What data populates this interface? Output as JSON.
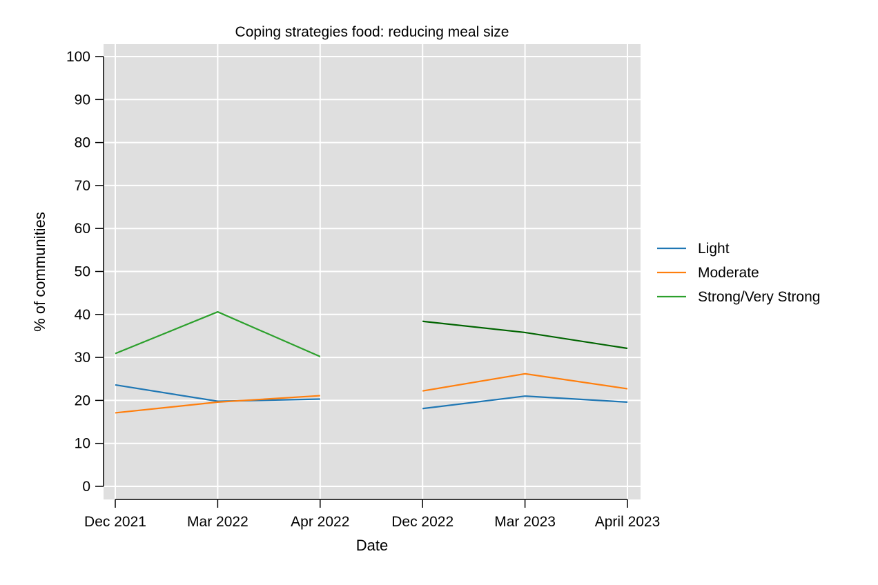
{
  "chart_data": {
    "type": "line",
    "title": "Coping strategies food: reducing meal size",
    "xlabel": "Date",
    "ylabel": "% of communities",
    "categories": [
      "Dec 2021",
      "Mar 2022",
      "Apr 2022",
      "Dec 2022",
      "Mar 2023",
      "April 2023"
    ],
    "ylim": [
      0,
      100
    ],
    "yticks": [
      0,
      10,
      20,
      30,
      40,
      50,
      60,
      70,
      80,
      90,
      100
    ],
    "grid": true,
    "legend_position": "right",
    "series": [
      {
        "name": "Light",
        "color": "#1f77b4",
        "segments": [
          {
            "start": 0,
            "values": [
              23.6,
              19.8,
              20.3
            ]
          },
          {
            "start": 3,
            "values": [
              18.1,
              21.0,
              19.6
            ]
          }
        ]
      },
      {
        "name": "Moderate",
        "color": "#ff7f0e",
        "segments": [
          {
            "start": 0,
            "values": [
              17.1,
              19.6,
              21.1
            ]
          },
          {
            "start": 3,
            "values": [
              22.2,
              26.2,
              22.7
            ]
          }
        ]
      },
      {
        "name": "Strong/Very Strong",
        "color": "#2ca02c",
        "segments": [
          {
            "start": 0,
            "values": [
              30.9,
              40.6,
              30.2
            ]
          },
          {
            "start": 3,
            "values": [
              38.4,
              35.8,
              32.1
            ],
            "color": "#006400"
          }
        ]
      }
    ]
  }
}
